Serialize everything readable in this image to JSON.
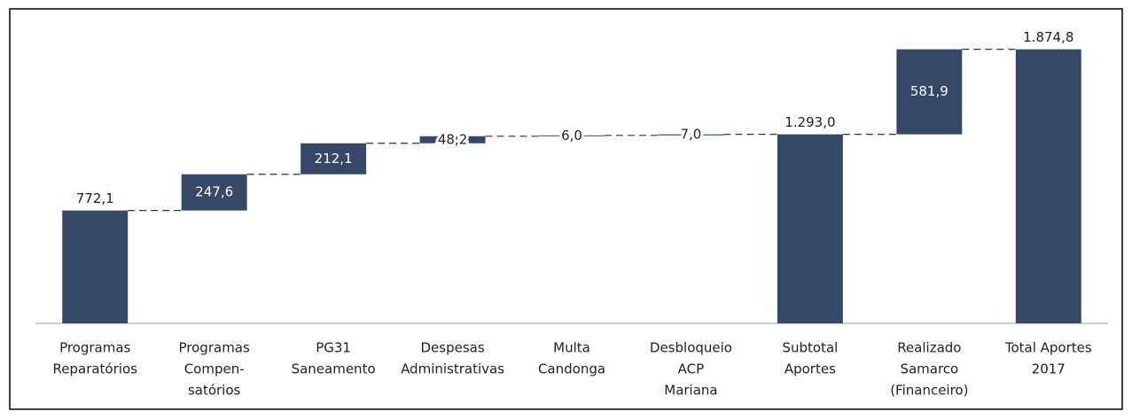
{
  "chart_data": {
    "type": "waterfall",
    "categories": [
      [
        "Programas",
        "Reparatórios"
      ],
      [
        "Programas",
        "Compen-",
        "satórios"
      ],
      [
        "PG31",
        "Saneamento"
      ],
      [
        "Despesas",
        "Administrativas"
      ],
      [
        "Multa",
        "Candonga"
      ],
      [
        "Desbloqueio",
        "ACP",
        "Mariana"
      ],
      [
        "Subtotal",
        "Aportes"
      ],
      [
        "Realizado",
        "Samarco",
        "(Financeiro)"
      ],
      [
        "Total Aportes",
        "2017"
      ]
    ],
    "values": [
      772.1,
      247.6,
      212.1,
      48.2,
      6.0,
      7.0,
      1293.0,
      581.9,
      1874.8
    ],
    "value_labels": [
      "772,1",
      "247,6",
      "212,1",
      "48,2",
      "6,0",
      "7,0",
      "1.293,0",
      "581,9",
      "1.874,8"
    ],
    "measure": [
      "absolute",
      "relative",
      "relative",
      "relative",
      "relative",
      "relative",
      "total",
      "relative",
      "total"
    ],
    "color": "#364868",
    "ylim": [
      0,
      2000
    ]
  }
}
